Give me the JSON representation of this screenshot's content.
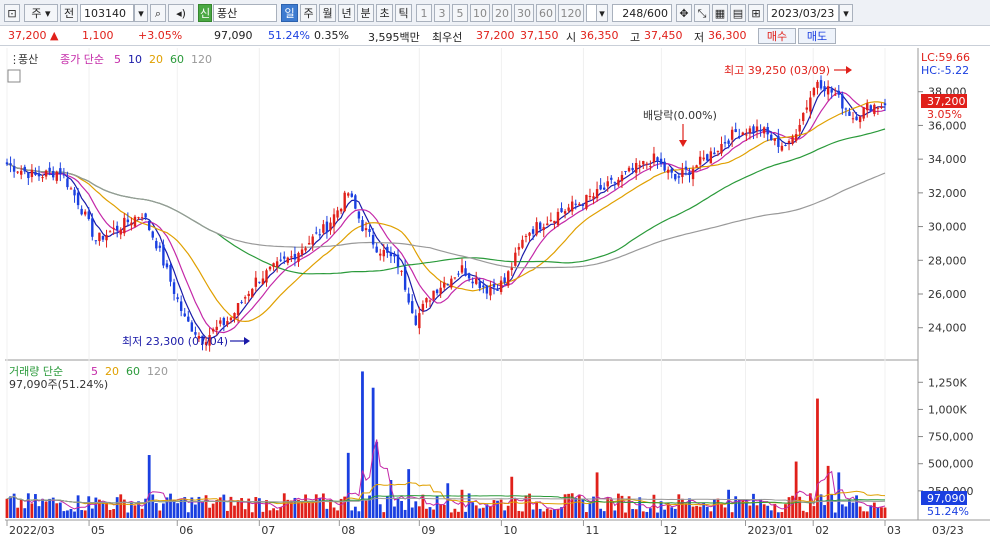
{
  "toolbar": {
    "type_label": "주",
    "prefix_label": "전",
    "code": "103140",
    "stock_name": "풍산",
    "new_badge": "신",
    "periods": [
      "일",
      "주",
      "월",
      "년",
      "분",
      "초",
      "틱"
    ],
    "active_period": "일",
    "intervals": [
      "1",
      "3",
      "5",
      "10",
      "20",
      "30",
      "60",
      "120"
    ],
    "count": "248/600",
    "date": "2023/03/23"
  },
  "quote": {
    "price": "37,200",
    "change": "1,100",
    "change_pct": "+3.05%",
    "volume": "97,090",
    "vol_ratio": "51.24%",
    "turnover": "0.35%",
    "amount": "3,595백만",
    "best_label": "최우선",
    "best_ask": "37,200",
    "best_bid": "37,150",
    "open_label": "시",
    "open": "36,350",
    "high_label": "고",
    "high": "37,450",
    "low_label": "저",
    "low": "36,300",
    "buy_label": "매수",
    "sell_label": "매도"
  },
  "colors": {
    "up": "#e0201a",
    "down": "#1a3fe0",
    "ma5": "#1a1aa8",
    "ma10": "#c428a8",
    "ma20": "#e0a000",
    "ma60": "#2a9a3a",
    "ma120": "#999999"
  },
  "chart_data": [
    {
      "type": "candlestick",
      "legend_stock": "풍산",
      "legend_price": "종가 단순",
      "ma_labels": [
        "5",
        "10",
        "20",
        "60",
        "120"
      ],
      "ylim": [
        22500,
        40000
      ],
      "y_ticks": [
        "38,000",
        "36,000",
        "34,000",
        "32,000",
        "30,000",
        "28,000",
        "26,000",
        "24,000"
      ],
      "lc_label": "LC:59.66",
      "hc_label": "HC:-5.22",
      "last_price_tag": "37,200",
      "last_pct_tag": "3.05%",
      "annotations": {
        "high": "최고 39,250 (03/09)",
        "low": "최저 23,300 (07/04)",
        "dividend": "배당락(0.00%)"
      },
      "anchors": [
        [
          0,
          33700
        ],
        [
          8,
          33000
        ],
        [
          15,
          33300
        ],
        [
          20,
          31500
        ],
        [
          25,
          29200
        ],
        [
          30,
          29800
        ],
        [
          38,
          30800
        ],
        [
          42,
          29000
        ],
        [
          50,
          24500
        ],
        [
          55,
          23300
        ],
        [
          63,
          24600
        ],
        [
          70,
          26800
        ],
        [
          80,
          28200
        ],
        [
          90,
          30000
        ],
        [
          96,
          32000
        ],
        [
          100,
          30000
        ],
        [
          104,
          28800
        ],
        [
          110,
          27800
        ],
        [
          115,
          24500
        ],
        [
          120,
          26200
        ],
        [
          128,
          27500
        ],
        [
          135,
          26300
        ],
        [
          140,
          26700
        ],
        [
          146,
          29600
        ],
        [
          155,
          30800
        ],
        [
          165,
          31800
        ],
        [
          175,
          33200
        ],
        [
          182,
          34000
        ],
        [
          188,
          32800
        ],
        [
          195,
          33800
        ],
        [
          205,
          35600
        ],
        [
          212,
          35800
        ],
        [
          216,
          35000
        ],
        [
          220,
          34800
        ],
        [
          228,
          38700
        ],
        [
          233,
          37800
        ],
        [
          238,
          36500
        ],
        [
          243,
          37200
        ]
      ]
    },
    {
      "type": "bar",
      "legend_vol": "거래량 단순",
      "ma_labels": [
        "5",
        "20",
        "60",
        "120"
      ],
      "info": "97,090주(51.24%)",
      "ylim": [
        0,
        1400000
      ],
      "y_ticks": [
        "1,250K",
        "1,000K",
        "750,000",
        "500,000",
        "250,000"
      ],
      "last_vol_tag": "97,090",
      "last_pct_tag": "51.24%",
      "spikes": [
        [
          23,
          200000
        ],
        [
          40,
          580000
        ],
        [
          96,
          600000
        ],
        [
          100,
          1350000
        ],
        [
          103,
          1200000
        ],
        [
          104,
          700000
        ],
        [
          108,
          350000
        ],
        [
          113,
          450000
        ],
        [
          124,
          320000
        ],
        [
          128,
          260000
        ],
        [
          142,
          380000
        ],
        [
          166,
          420000
        ],
        [
          203,
          260000
        ],
        [
          222,
          520000
        ],
        [
          228,
          1100000
        ],
        [
          231,
          480000
        ],
        [
          234,
          420000
        ]
      ],
      "x_labels": [
        "2022/03",
        "05",
        "06",
        "07",
        "08",
        "09",
        "10",
        "11",
        "12",
        "2023/01",
        "02",
        "03",
        "03/23"
      ]
    }
  ]
}
